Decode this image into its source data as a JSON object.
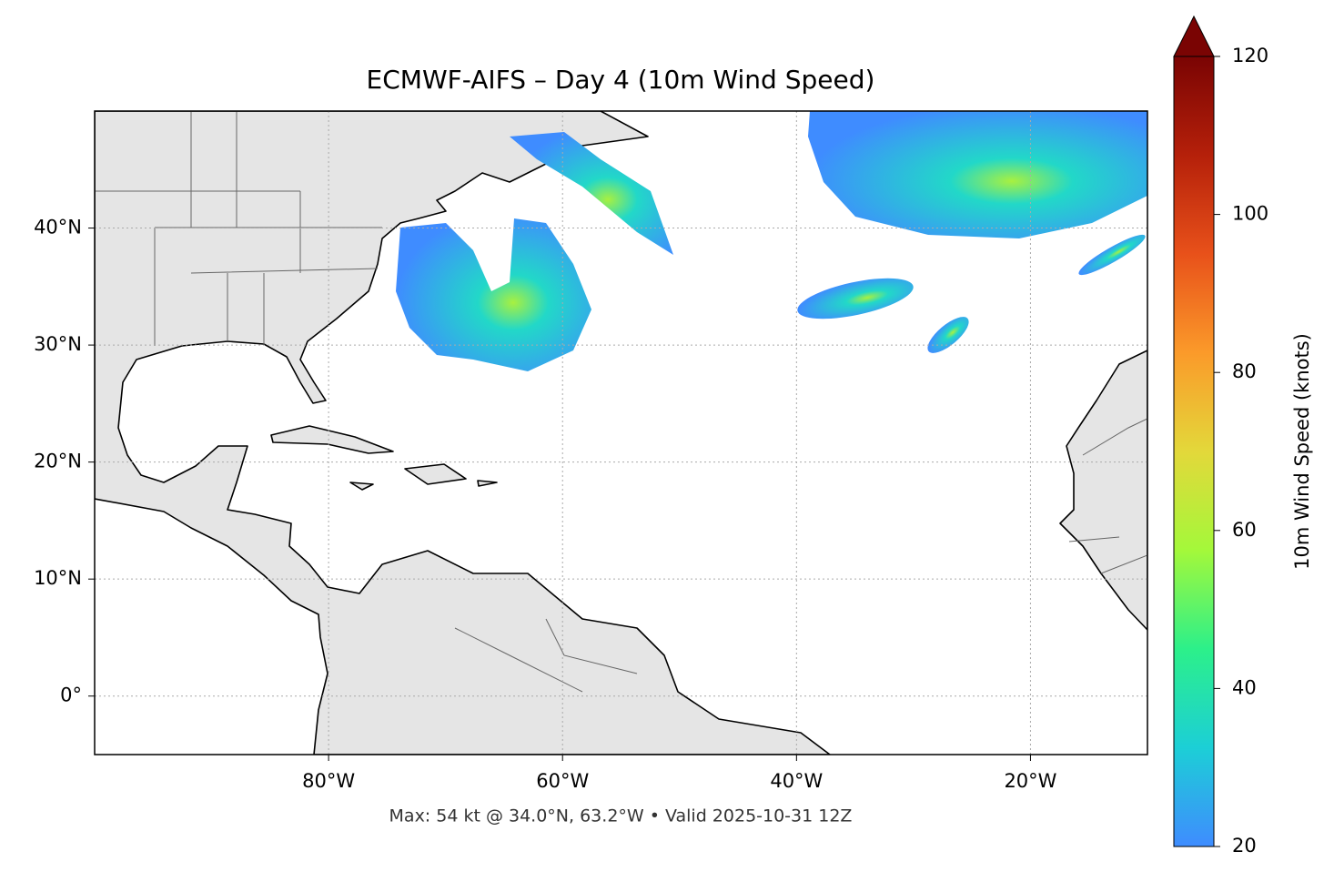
{
  "map": {
    "title": "ECMWF-AIFS – Day 4 (10m Wind Speed)",
    "note": "Max: 54 kt @ 34.0°N, 63.2°W • Valid 2025-10-31 12Z",
    "lonlim": [
      -100,
      -10
    ],
    "latlim": [
      -5,
      50
    ],
    "lon_ticks": [
      {
        "value": -80,
        "label": "80°W"
      },
      {
        "value": -60,
        "label": "60°W"
      },
      {
        "value": -40,
        "label": "40°W"
      },
      {
        "value": -20,
        "label": "20°W"
      }
    ],
    "lat_ticks": [
      {
        "value": 0,
        "label": "0°"
      },
      {
        "value": 10,
        "label": "10°N"
      },
      {
        "value": 20,
        "label": "20°N"
      },
      {
        "value": 30,
        "label": "30°N"
      },
      {
        "value": 40,
        "label": "40°N"
      }
    ],
    "grid": true,
    "colorbar": {
      "label": "10m Wind Speed (knots)",
      "lim": [
        20,
        120
      ],
      "ticks": [
        20,
        40,
        60,
        80,
        100,
        120
      ],
      "colors": [
        "#3f8cff",
        "#1ccfd6",
        "#2cf08a",
        "#a4f83a",
        "#e3d83a",
        "#fb9a2a",
        "#e8511a",
        "#b5200a",
        "#7a0403"
      ]
    }
  }
}
